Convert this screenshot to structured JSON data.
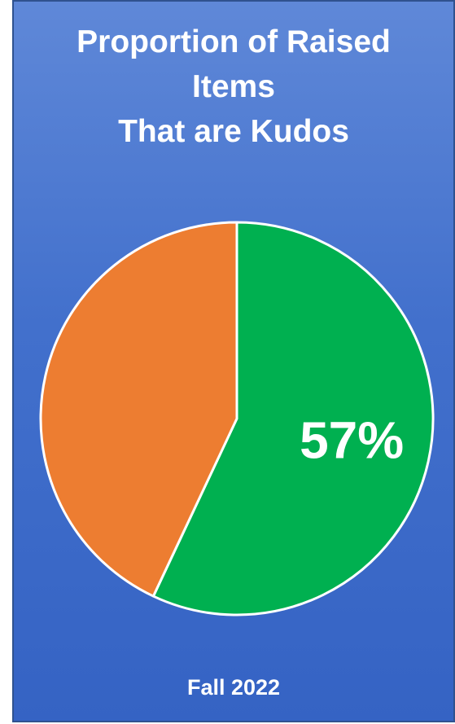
{
  "chart_data": {
    "type": "pie",
    "title": [
      "Proportion of Raised",
      "Items",
      "That are Kudos"
    ],
    "slices": [
      {
        "value": 57,
        "label": "57%",
        "color": "#00b050"
      },
      {
        "value": 43,
        "label": "",
        "color": "#ed7d31"
      }
    ],
    "start": "12 o'clock",
    "direction": "clockwise",
    "slice_border_color": "#ffffff"
  },
  "footer": {
    "label": "Fall 2022"
  },
  "colors": {
    "background_top": "#5f88d8",
    "background_bottom": "#3563c4",
    "text": "#ffffff"
  }
}
